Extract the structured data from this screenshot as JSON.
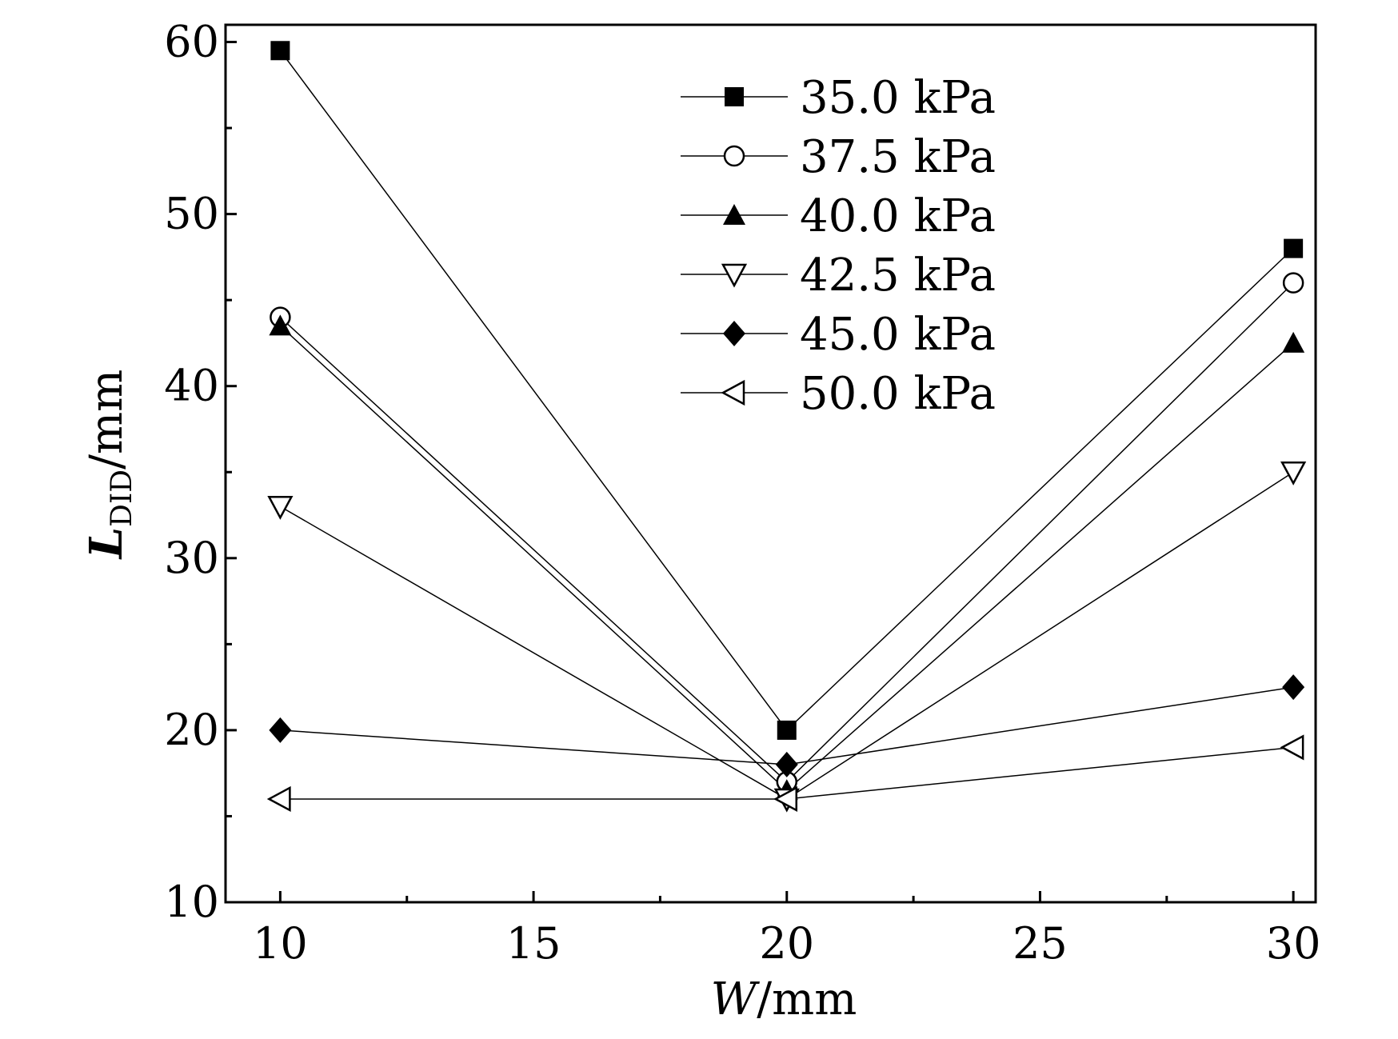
{
  "chart_data": {
    "type": "line",
    "title": "",
    "xlabel_italic": "W",
    "xlabel_unit": "/mm",
    "ylabel_italic": "L",
    "ylabel_sub": "DID",
    "ylabel_unit": "/mm",
    "x": [
      10,
      20,
      30
    ],
    "xlim": [
      8.92,
      30.44
    ],
    "ylim": [
      10,
      61
    ],
    "xticks": [
      10,
      15,
      20,
      25,
      30
    ],
    "yticks": [
      10,
      20,
      30,
      40,
      50,
      60
    ],
    "grid": false,
    "legend_position": "top-center",
    "series": [
      {
        "name": "35.0 kPa",
        "marker": "square-filled",
        "values": [
          59.5,
          20,
          48
        ]
      },
      {
        "name": "37.5 kPa",
        "marker": "circle-open",
        "values": [
          44,
          17,
          46
        ]
      },
      {
        "name": "40.0 kPa",
        "marker": "triangle-up-filled",
        "values": [
          43.5,
          16.5,
          42.5
        ]
      },
      {
        "name": "42.5 kPa",
        "marker": "triangle-down-open",
        "values": [
          33,
          16,
          35
        ]
      },
      {
        "name": "45.0 kPa",
        "marker": "diamond-filled",
        "values": [
          20,
          18,
          22.5
        ]
      },
      {
        "name": "50.0 kPa",
        "marker": "triangle-left-open",
        "values": [
          16,
          16,
          19
        ]
      }
    ]
  }
}
